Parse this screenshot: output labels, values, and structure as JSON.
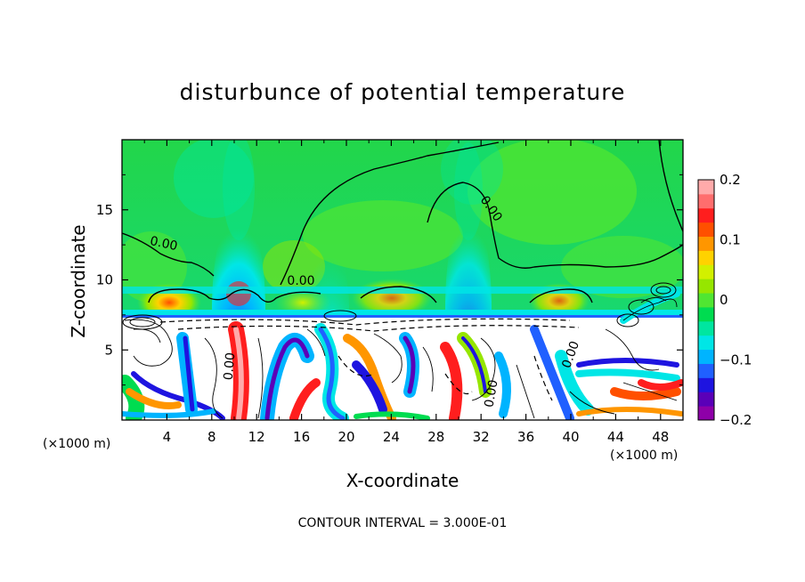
{
  "chart_data": {
    "type": "heatmap",
    "title": "disturbunce of potential temperature",
    "xlabel": "X-coordinate",
    "ylabel": "Z-coordinate",
    "x_unit": "(×1000 m)",
    "x_unit_right": "(×1000 m)",
    "xlim": [
      0,
      50
    ],
    "ylim": [
      0,
      20
    ],
    "x_ticks": [
      "4",
      "8",
      "12",
      "16",
      "20",
      "24",
      "28",
      "32",
      "36",
      "40",
      "44",
      "48"
    ],
    "y_ticks": [
      "5",
      "10",
      "15"
    ],
    "colorbar": {
      "range": [
        -0.2,
        0.2
      ],
      "ticks": [
        "0.2",
        "0.1",
        "0",
        "−0.1",
        "−0.2"
      ],
      "colors": [
        "#8e00a8",
        "#5a00b8",
        "#1e14e0",
        "#2060ff",
        "#00b4ff",
        "#00e6e6",
        "#00e6a0",
        "#00dc50",
        "#50e632",
        "#96e600",
        "#d2f000",
        "#ffd200",
        "#ff9600",
        "#ff5000",
        "#ff1e1e",
        "#ff6e6e",
        "#ffaaaa"
      ]
    },
    "contour_labels": [
      "0.00",
      "0.00",
      "0.00",
      "0.00",
      "0.00",
      "0.00"
    ],
    "contour_interval_text": "CONTOUR INTERVAL = 3.000E-01"
  }
}
